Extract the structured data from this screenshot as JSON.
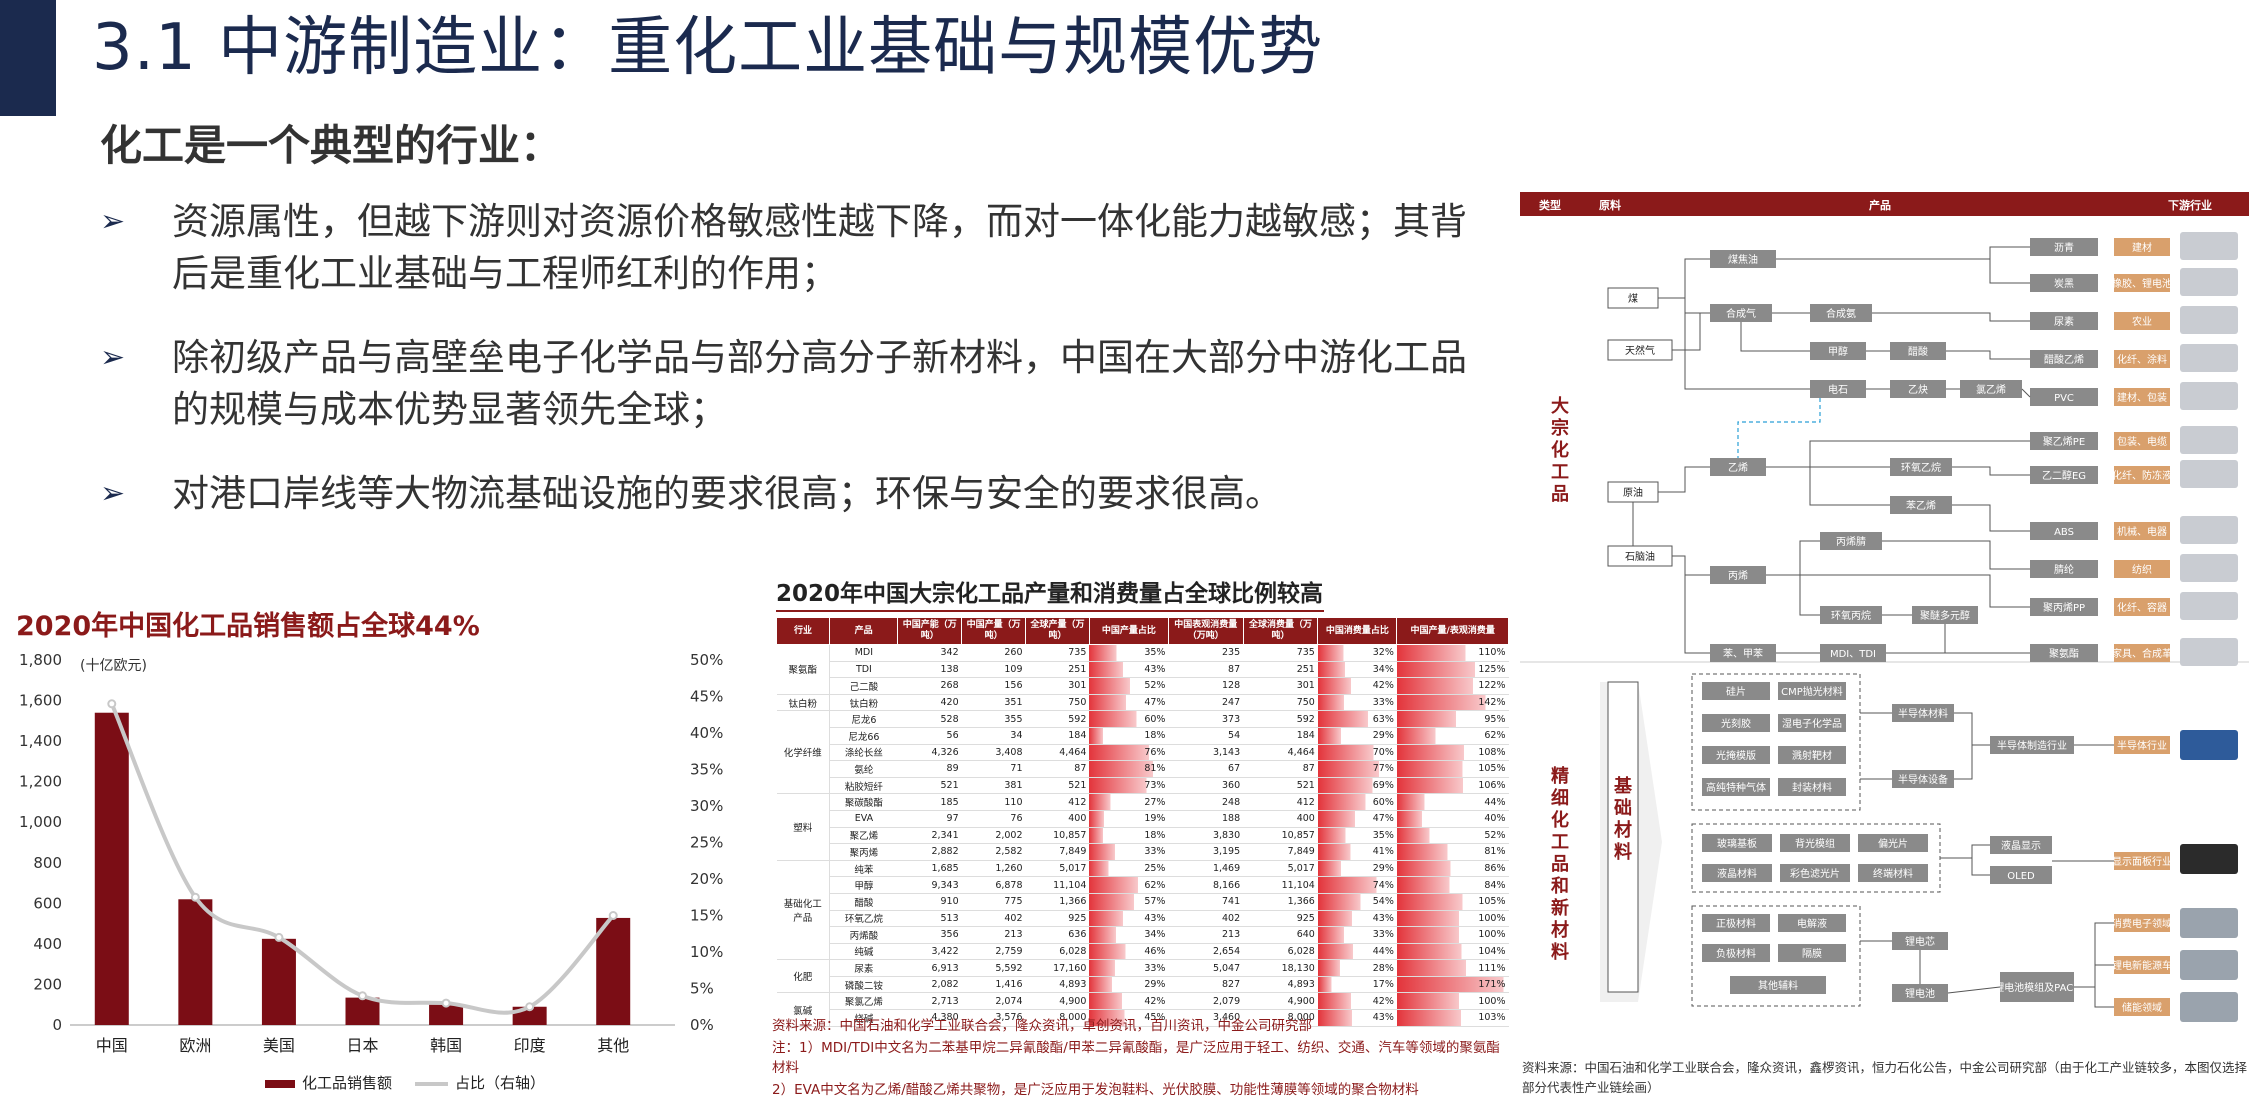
{
  "title": "3.1 中游制造业：重化工业基础与规模优势",
  "subtitle": "化工是一个典型的行业：",
  "bullets": [
    "资源属性，但越下游则对资源价格敏感性越下降，而对一体化能力越敏感；其背后是重化工业基础与工程师红利的作用；",
    "除初级产品与高壁垒电子化学品与部分高分子新材料，中国在大部分中游化工品的规模与成本优势显著领先全球；",
    "对港口岸线等大物流基础设施的要求很高；环保与安全的要求很高。"
  ],
  "bullet_symbol": "➢",
  "chart_data": {
    "type": "bar",
    "title": "2020年中国化工品销售额占全球44%",
    "unit_label": "(十亿欧元)",
    "categories": [
      "中国",
      "欧洲",
      "美国",
      "日本",
      "韩国",
      "印度",
      "其他"
    ],
    "series": [
      {
        "name": "化工品销售额",
        "type": "bar",
        "values": [
          1540,
          620,
          425,
          135,
          100,
          90,
          528
        ]
      },
      {
        "name": "占比（右轴）",
        "type": "line",
        "values": [
          44,
          17.5,
          12,
          4,
          3,
          2.5,
          15
        ]
      }
    ],
    "ylim": [
      0,
      1800
    ],
    "y_ticks": [
      "0",
      "200",
      "400",
      "600",
      "800",
      "1,000",
      "1,200",
      "1,400",
      "1,600",
      "1,800"
    ],
    "y2lim": [
      0,
      50
    ],
    "y2_ticks": [
      "0%",
      "5%",
      "10%",
      "15%",
      "20%",
      "25%",
      "30%",
      "35%",
      "40%",
      "45%",
      "50%"
    ],
    "colors": {
      "bar": "#7b0d15",
      "line": "#c8c8c8"
    },
    "legend_position": "bottom"
  },
  "table": {
    "title": "2020年中国大宗化工品产量和消费量占全球比例较高",
    "headers": [
      "行业",
      "产品",
      "中国产能（万吨）",
      "中国产量（万吨）",
      "全球产量（万吨）",
      "中国产量占比",
      "中国表观消费量（万吨）",
      "全球消费量（万吨）",
      "中国消费量占比",
      "中国产量/表观消费量"
    ],
    "groups": [
      {
        "name": "聚氨酯",
        "rows": [
          [
            "MDI",
            "342",
            "260",
            "735",
            "35%",
            "235",
            "735",
            "32%",
            "110%"
          ],
          [
            "TDI",
            "138",
            "109",
            "251",
            "43%",
            "87",
            "251",
            "34%",
            "125%"
          ],
          [
            "己二酸",
            "268",
            "156",
            "301",
            "52%",
            "128",
            "301",
            "42%",
            "122%"
          ]
        ]
      },
      {
        "name": "钛白粉",
        "rows": [
          [
            "钛白粉",
            "420",
            "351",
            "750",
            "47%",
            "247",
            "750",
            "33%",
            "142%"
          ]
        ]
      },
      {
        "name": "化学纤维",
        "rows": [
          [
            "尼龙6",
            "528",
            "355",
            "592",
            "60%",
            "373",
            "592",
            "63%",
            "95%"
          ],
          [
            "尼龙66",
            "56",
            "34",
            "184",
            "18%",
            "54",
            "184",
            "29%",
            "62%"
          ],
          [
            "涤纶长丝",
            "4,326",
            "3,408",
            "4,464",
            "76%",
            "3,143",
            "4,464",
            "70%",
            "108%"
          ],
          [
            "氨纶",
            "89",
            "71",
            "87",
            "81%",
            "67",
            "87",
            "77%",
            "105%"
          ],
          [
            "粘胶短纤",
            "521",
            "381",
            "521",
            "73%",
            "360",
            "521",
            "69%",
            "106%"
          ]
        ]
      },
      {
        "name": "塑料",
        "rows": [
          [
            "聚碳酸酯",
            "185",
            "110",
            "412",
            "27%",
            "248",
            "412",
            "60%",
            "44%"
          ],
          [
            "EVA",
            "97",
            "76",
            "400",
            "19%",
            "188",
            "400",
            "47%",
            "40%"
          ],
          [
            "聚乙烯",
            "2,341",
            "2,002",
            "10,857",
            "18%",
            "3,830",
            "10,857",
            "35%",
            "52%"
          ],
          [
            "聚丙烯",
            "2,882",
            "2,582",
            "7,849",
            "33%",
            "3,195",
            "7,849",
            "41%",
            "81%"
          ]
        ]
      },
      {
        "name": "基础化工产品",
        "rows": [
          [
            "纯苯",
            "1,685",
            "1,260",
            "5,017",
            "25%",
            "1,469",
            "5,017",
            "29%",
            "86%"
          ],
          [
            "甲醇",
            "9,343",
            "6,878",
            "11,104",
            "62%",
            "8,166",
            "11,104",
            "74%",
            "84%"
          ],
          [
            "醋酸",
            "910",
            "775",
            "1,366",
            "57%",
            "741",
            "1,366",
            "54%",
            "105%"
          ],
          [
            "环氧乙烷",
            "513",
            "402",
            "925",
            "43%",
            "402",
            "925",
            "43%",
            "100%"
          ],
          [
            "丙烯酸",
            "356",
            "213",
            "636",
            "34%",
            "213",
            "640",
            "33%",
            "100%"
          ],
          [
            "纯碱",
            "3,422",
            "2,759",
            "6,028",
            "46%",
            "2,654",
            "6,028",
            "44%",
            "104%"
          ]
        ]
      },
      {
        "name": "化肥",
        "rows": [
          [
            "尿素",
            "6,913",
            "5,592",
            "17,160",
            "33%",
            "5,047",
            "18,130",
            "28%",
            "111%"
          ],
          [
            "磷酸二铵",
            "2,082",
            "1,416",
            "4,893",
            "29%",
            "827",
            "4,893",
            "17%",
            "171%"
          ]
        ]
      },
      {
        "name": "氯碱",
        "rows": [
          [
            "聚氯乙烯",
            "2,713",
            "2,074",
            "4,900",
            "42%",
            "2,079",
            "4,900",
            "42%",
            "100%"
          ],
          [
            "烧碱",
            "4,380",
            "3,576",
            "8,000",
            "45%",
            "3,460",
            "8,000",
            "43%",
            "103%"
          ]
        ]
      }
    ],
    "notes": [
      "资料来源：中国石油和化学工业联合会，隆众资讯，卓创资讯，百川资讯，中金公司研究部",
      "注：1）MDI/TDI中文名为二苯基甲烷二异氰酸酯/甲苯二异氰酸酯，是广泛应用于轻工、纺织、交通、汽车等领域的聚氨酯材料",
      "2）EVA中文名为乙烯/醋酸乙烯共聚物，是广泛应用于发泡鞋料、光伏胶膜、功能性薄膜等领域的聚合物材料"
    ],
    "colors": {
      "header": "#8b1a1a",
      "pct_fill": "#e3343b"
    }
  },
  "chain": {
    "headers": [
      "类型",
      "原料",
      "产品",
      "下游行业"
    ],
    "types": [
      "大宗化工品",
      "精细化工品和新材料"
    ],
    "base_material_label": "基础材料",
    "raw": [
      "煤",
      "天然气",
      "原油",
      "石脑油"
    ],
    "nodes": {
      "coke_oil": "煤焦油",
      "syngas": "合成气",
      "syn_ammonia": "合成氨",
      "methanol": "甲醇",
      "acetic": "醋酸",
      "carbide": "电石",
      "acetylene": "乙炔",
      "vinyl_chloride": "氯乙烯",
      "ethylene": "乙烯",
      "eo": "环氧乙烷",
      "styrene": "苯乙烯",
      "acrylonitrile": "丙烯腈",
      "propylene": "丙烯",
      "propylene_oxide": "环氧丙烷",
      "polyol": "聚醚多元醇",
      "btx": "苯、甲苯",
      "mdi_tdi": "MDI、TDI"
    },
    "products": [
      "沥青",
      "炭黑",
      "尿素",
      "醋酸乙烯",
      "PVC",
      "聚乙烯PE",
      "乙二醇EG",
      "ABS",
      "腈纶",
      "聚丙烯PP",
      "聚氨酯"
    ],
    "downstream": [
      "建材",
      "橡胶、锂电池",
      "农业",
      "化纤、涂料",
      "建材、包装",
      "包装、电缆",
      "化纤、防冻液",
      "机械、电器",
      "纺织",
      "化纤、容器",
      "家具、合成革"
    ],
    "fine_groups": [
      {
        "items": [
          "硅片",
          "CMP抛光材料",
          "光刻胶",
          "湿电子化学品",
          "光掩模版",
          "溅射靶材",
          "高纯特种气体",
          "封装材料"
        ],
        "mid": [
          "半导体材料",
          "半导体设备"
        ],
        "product": "半导体制造行业",
        "downstream": "半导体行业"
      },
      {
        "items": [
          "玻璃基板",
          "背光模组",
          "偏光片",
          "液晶材料",
          "彩色滤光片",
          "终端材料"
        ],
        "mid": [],
        "product_list": [
          "液晶显示",
          "OLED"
        ],
        "downstream": "显示面板行业"
      },
      {
        "items": [
          "正极材料",
          "电解液",
          "负极材料",
          "隔膜",
          "其他辅料"
        ],
        "mid": [
          "锂电芯",
          "锂电池"
        ],
        "product": "锂电池模组及PACK",
        "downstream_list": [
          "消费电子领域",
          "锂电新能源车",
          "储能领域"
        ]
      }
    ],
    "source_note": "资料来源：中国石油和化学工业联合会，隆众资讯，鑫椤资讯，恒力石化公告，中金公司研究部（由于化工产业链较多，本图仅选择部分代表性产业链绘画）"
  }
}
